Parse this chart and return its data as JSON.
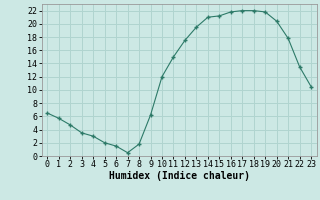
{
  "x": [
    0,
    1,
    2,
    3,
    4,
    5,
    6,
    7,
    8,
    9,
    10,
    11,
    12,
    13,
    14,
    15,
    16,
    17,
    18,
    19,
    20,
    21,
    22,
    23
  ],
  "y": [
    6.5,
    5.7,
    4.7,
    3.5,
    3.0,
    2.0,
    1.5,
    0.5,
    1.8,
    6.2,
    12.0,
    15.0,
    17.5,
    19.5,
    21.0,
    21.2,
    21.8,
    22.0,
    22.0,
    21.8,
    20.4,
    17.8,
    13.5,
    10.5
  ],
  "line_color": "#2d7a68",
  "marker_color": "#2d7a68",
  "bg_color": "#cce8e4",
  "grid_color": "#b0d4cf",
  "xlabel": "Humidex (Indice chaleur)",
  "xlabel_fontsize": 7,
  "tick_fontsize": 6,
  "xlim": [
    -0.5,
    23.5
  ],
  "ylim": [
    0,
    23
  ],
  "yticks": [
    0,
    2,
    4,
    6,
    8,
    10,
    12,
    14,
    16,
    18,
    20,
    22
  ],
  "xticks": [
    0,
    1,
    2,
    3,
    4,
    5,
    6,
    7,
    8,
    9,
    10,
    11,
    12,
    13,
    14,
    15,
    16,
    17,
    18,
    19,
    20,
    21,
    22,
    23
  ]
}
